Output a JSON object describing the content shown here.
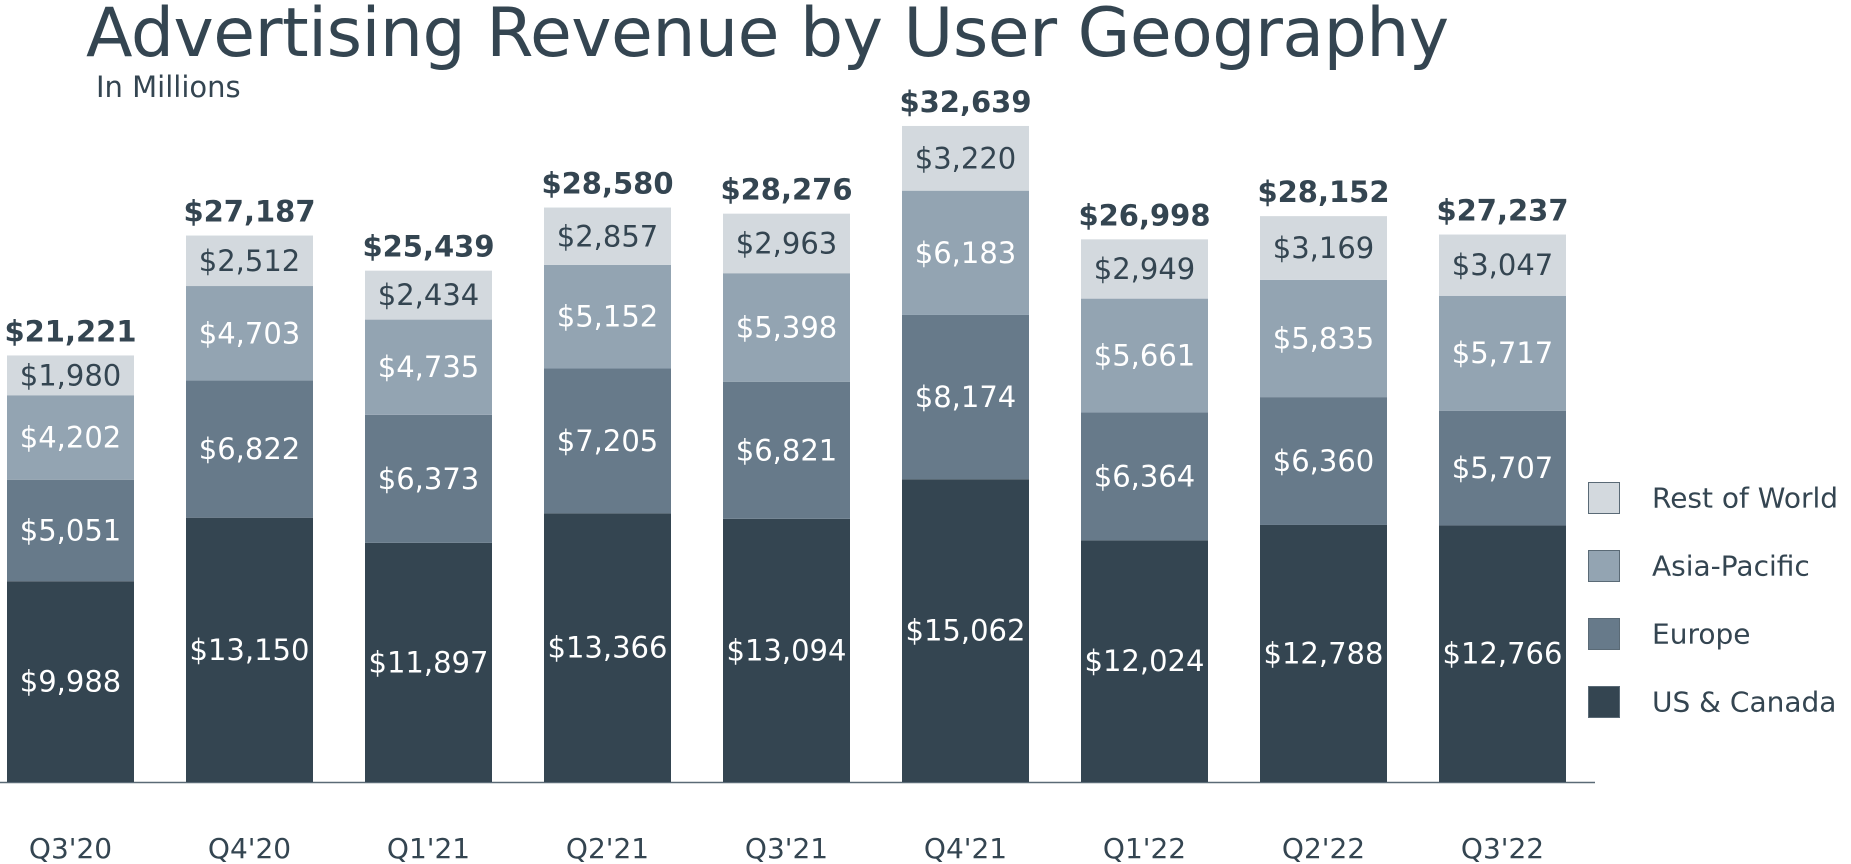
{
  "chart_data": {
    "type": "bar",
    "stacked": true,
    "title": "Advertising Revenue by User Geography",
    "subtitle": "In Millions",
    "xlabel": "",
    "ylabel": "",
    "ylim": [
      0,
      33000
    ],
    "grid": false,
    "legend_position": "right",
    "categories": [
      "Q3'20",
      "Q4'20",
      "Q1'21",
      "Q2'21",
      "Q3'21",
      "Q4'21",
      "Q1'22",
      "Q2'22",
      "Q3'22"
    ],
    "series": [
      {
        "name": "US & Canada",
        "color": "#344551",
        "label_color": "#ffffff",
        "values": [
          9988,
          13150,
          11897,
          13366,
          13094,
          15062,
          12024,
          12788,
          12766
        ]
      },
      {
        "name": "Europe",
        "color": "#677a8a",
        "label_color": "#ffffff",
        "values": [
          5051,
          6822,
          6373,
          7205,
          6821,
          8174,
          6364,
          6360,
          5707
        ]
      },
      {
        "name": "Asia-Pacific",
        "color": "#93a4b2",
        "label_color": "#ffffff",
        "values": [
          4202,
          4703,
          4735,
          5152,
          5398,
          6183,
          5661,
          5835,
          5717
        ]
      },
      {
        "name": "Rest of World",
        "color": "#d3d9de",
        "label_color": "#344551",
        "values": [
          1980,
          2512,
          2434,
          2857,
          2963,
          3220,
          2949,
          3169,
          3047
        ]
      }
    ],
    "totals": [
      21221,
      27187,
      25439,
      28580,
      28276,
      32639,
      26998,
      28152,
      27237
    ],
    "legend_order": [
      "Rest of World",
      "Asia-Pacific",
      "Europe",
      "US & Canada"
    ]
  }
}
